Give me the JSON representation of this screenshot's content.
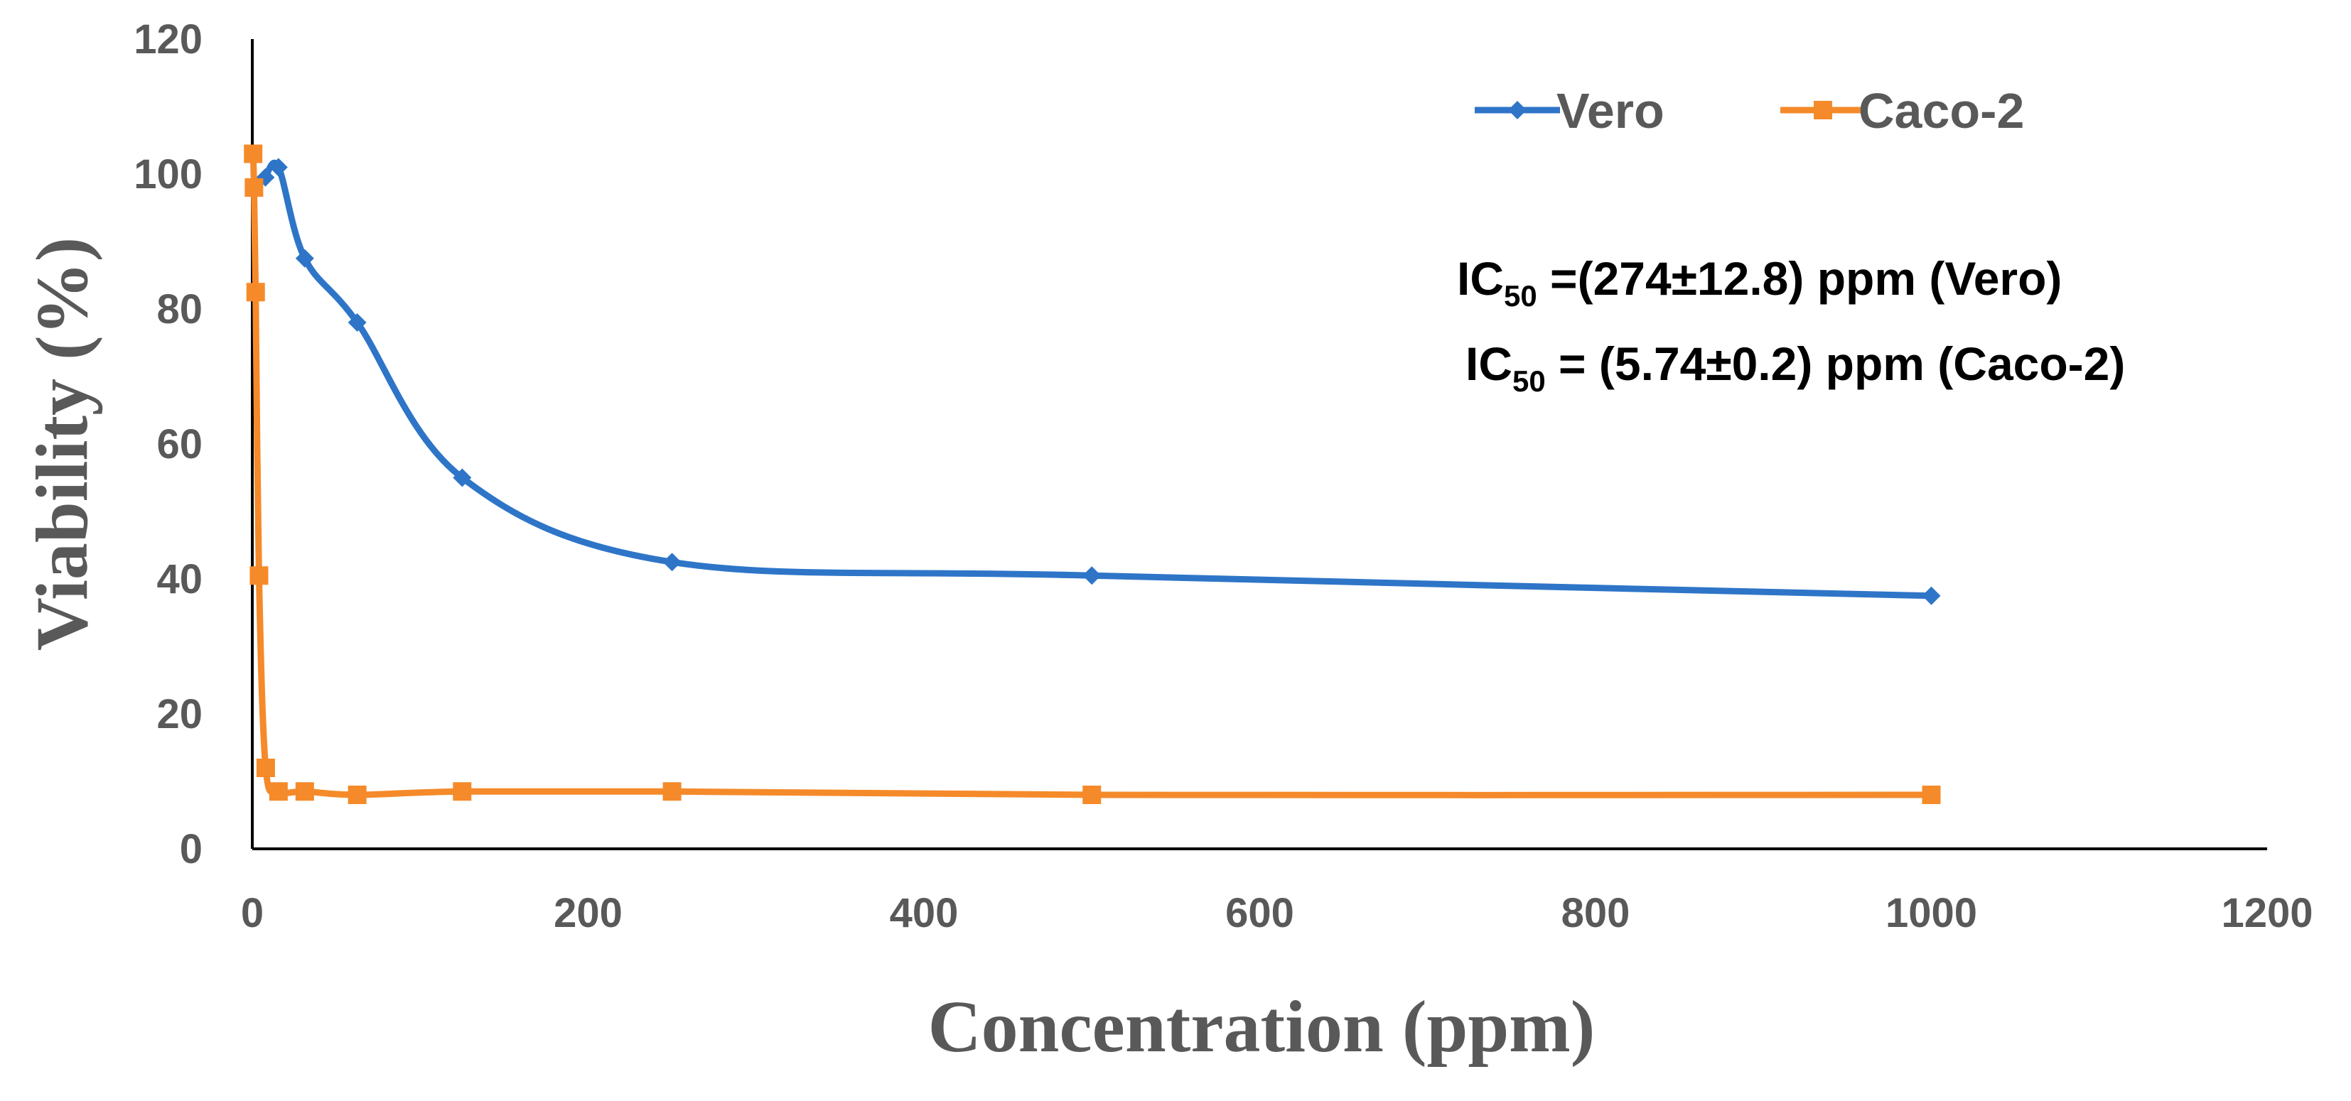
{
  "chart_data": {
    "type": "line",
    "title": "",
    "xlabel": "Concentration (ppm)",
    "ylabel": "Viability (%)",
    "xlim": [
      0,
      1200
    ],
    "ylim": [
      0,
      120
    ],
    "x_ticks": [
      "0",
      "200",
      "400",
      "600",
      "800",
      "1000",
      "1200"
    ],
    "y_ticks": [
      "0",
      "20",
      "40",
      "60",
      "80",
      "100",
      "120"
    ],
    "grid": false,
    "legend_position": "top-right",
    "series": [
      {
        "name": "Vero",
        "color": "#2E75C8",
        "marker": "diamond",
        "x": [
          7.8,
          15.6,
          31.25,
          62.5,
          125,
          250,
          500,
          1000
        ],
        "y": [
          99.5,
          101,
          87.5,
          78,
          55,
          42.5,
          40.5,
          37.5
        ]
      },
      {
        "name": "Caco-2",
        "color": "#F58A2A",
        "marker": "square",
        "x": [
          0.5,
          1,
          2,
          4,
          8,
          15.6,
          31.25,
          62.5,
          125,
          250,
          500,
          1000
        ],
        "y": [
          103,
          98,
          82.5,
          40.5,
          12,
          8.5,
          8.5,
          8,
          8.5,
          8.5,
          8,
          8
        ]
      }
    ],
    "annotations": [
      {
        "prefix": "IC",
        "sub": "50",
        "text": " =(274±12.8) ppm (Vero)"
      },
      {
        "prefix": "IC",
        "sub": "50",
        "text": " = (5.74±0.2) ppm (Caco-2)"
      }
    ]
  }
}
